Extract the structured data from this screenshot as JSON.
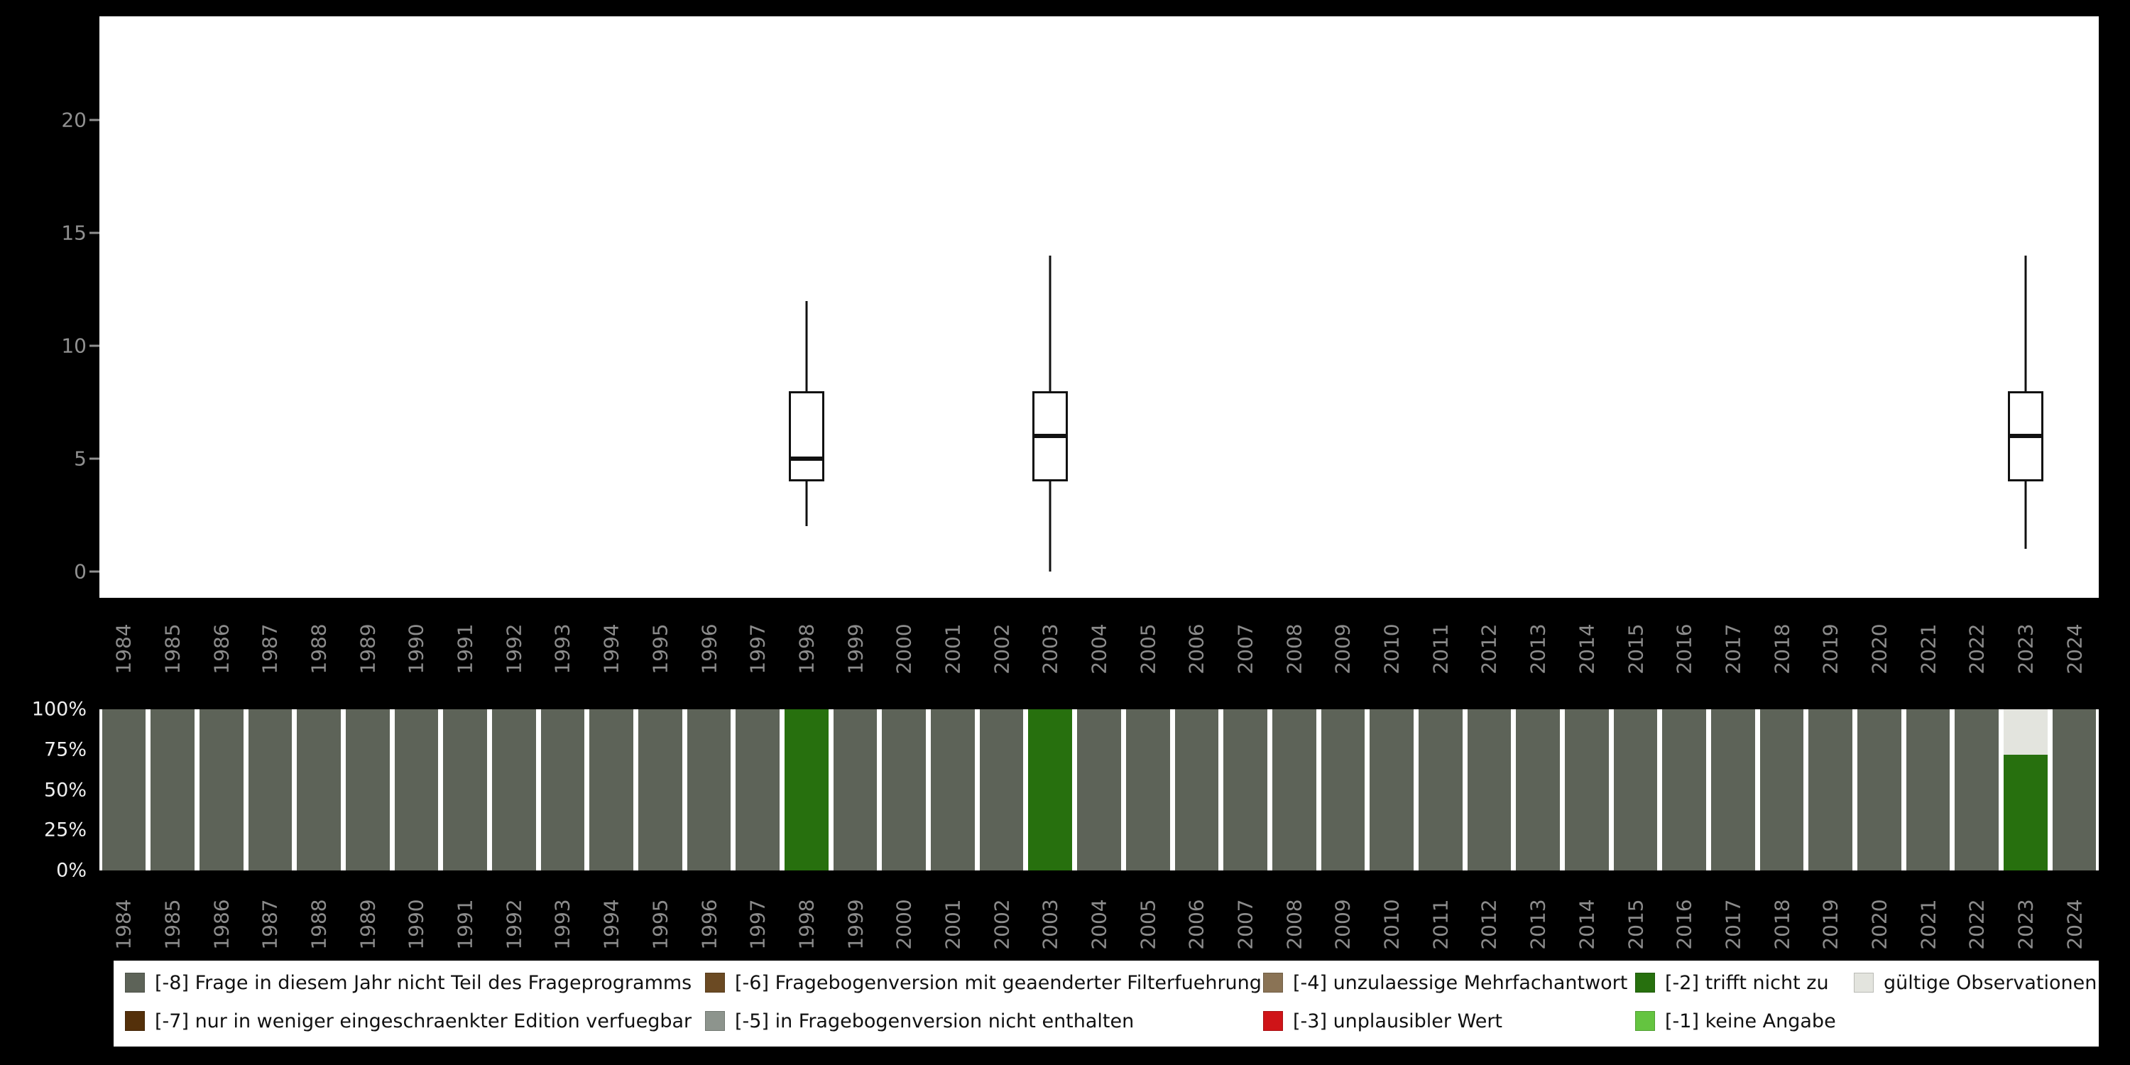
{
  "page": {
    "background": "#000000",
    "panel_background": "#ffffff"
  },
  "years": [
    "1984",
    "1985",
    "1986",
    "1987",
    "1988",
    "1989",
    "1990",
    "1991",
    "1992",
    "1993",
    "1994",
    "1995",
    "1996",
    "1997",
    "1998",
    "1999",
    "2000",
    "2001",
    "2002",
    "2003",
    "2004",
    "2005",
    "2006",
    "2007",
    "2008",
    "2009",
    "2010",
    "2011",
    "2012",
    "2013",
    "2014",
    "2015",
    "2016",
    "2017",
    "2018",
    "2019",
    "2020",
    "2021",
    "2022",
    "2023",
    "2024"
  ],
  "colors": {
    "-8": "#5d6358",
    "-7": "#54300a",
    "-6": "#6b4a23",
    "-5": "#8d948d",
    "-4": "#8a7355",
    "-3": "#cf1418",
    "-2": "#27700e",
    "-1": "#64c440",
    "valid": "#e3e4de",
    "box_stroke": "#111111",
    "axis_text": "#8c8c8c",
    "pct_text": "#efefef"
  },
  "chart_data": [
    {
      "type": "boxplot",
      "title": "",
      "xlabel": "",
      "ylabel": "",
      "x_categories_ref": "years",
      "yticks": [
        0,
        5,
        10,
        15,
        20
      ],
      "ylim": [
        0,
        24.6
      ],
      "grid": false,
      "boxes": [
        {
          "year": "1998",
          "min": 2,
          "q1": 4,
          "median": 5,
          "q3": 8,
          "max": 12
        },
        {
          "year": "2003",
          "min": 0,
          "q1": 4,
          "median": 6,
          "q3": 8,
          "max": 14
        },
        {
          "year": "2023",
          "min": 1,
          "q1": 4,
          "median": 6,
          "q3": 8,
          "max": 14
        }
      ]
    },
    {
      "type": "bar",
      "stacked": "percent",
      "title": "",
      "xlabel": "",
      "ylabel": "",
      "x_categories_ref": "years",
      "ytick_labels": [
        "100%",
        "75%",
        "50%",
        "25%",
        "0%"
      ],
      "default_segments": [
        {
          "code": "-8",
          "pct": 100
        }
      ],
      "bars_override": {
        "1998": [
          {
            "code": "-2",
            "pct": 100
          }
        ],
        "2003": [
          {
            "code": "-2",
            "pct": 100
          }
        ],
        "2023": [
          {
            "code": "valid",
            "pct": 28
          },
          {
            "code": "-2",
            "pct": 72
          }
        ]
      }
    }
  ],
  "legend": {
    "position": "bottom",
    "columns": [
      {
        "items": [
          {
            "code": "-8",
            "label": "[-8] Frage in diesem Jahr nicht Teil des Frageprogramms"
          },
          {
            "code": "-7",
            "label": "[-7] nur in weniger eingeschraenkter Edition verfuegbar"
          }
        ]
      },
      {
        "items": [
          {
            "code": "-6",
            "label": "[-6] Fragebogenversion mit geaenderter Filterfuehrung"
          },
          {
            "code": "-5",
            "label": "[-5] in Fragebogenversion nicht enthalten"
          }
        ]
      },
      {
        "items": [
          {
            "code": "-4",
            "label": "[-4] unzulaessige Mehrfachantwort"
          },
          {
            "code": "-3",
            "label": "[-3] unplausibler Wert"
          }
        ]
      },
      {
        "items": [
          {
            "code": "-2",
            "label": "[-2] trifft nicht zu"
          },
          {
            "code": "-1",
            "label": "[-1] keine Angabe"
          }
        ]
      },
      {
        "items": [
          {
            "code": "valid",
            "label": "gültige Observationen"
          }
        ]
      }
    ]
  }
}
